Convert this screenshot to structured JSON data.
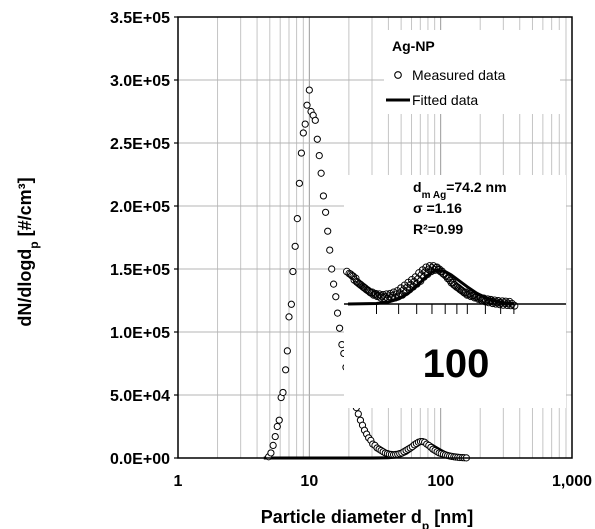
{
  "chart_data": {
    "type": "scatter",
    "xlabel_main": "Particle diameter d",
    "xlabel_sub": "p",
    "xlabel_unit": " [nm]",
    "ylabel_main": "dN/dlogd",
    "ylabel_sub": "p",
    "ylabel_unit": " [#/cm³]",
    "x_scale": "log",
    "xlim": [
      1,
      1000
    ],
    "ylim": [
      0,
      350000
    ],
    "x_ticks": [
      1,
      10,
      100,
      1000
    ],
    "x_tick_labels": [
      "1",
      "10",
      "100",
      "1,000"
    ],
    "y_ticks": [
      0,
      50000,
      100000,
      150000,
      200000,
      250000,
      300000,
      350000
    ],
    "y_tick_labels": [
      "0.0E+00",
      "5.0E+04",
      "1.0E+05",
      "1.5E+05",
      "2.0E+05",
      "2.5E+05",
      "3.0E+05",
      "3.5E+05"
    ],
    "grid": true,
    "legend": {
      "position": "top-right",
      "title": "Ag-NP",
      "entries": [
        "Measured data",
        "Fitted data"
      ]
    },
    "series": [
      {
        "name": "Measured data",
        "marker": "open-circle",
        "x": [
          4.9,
          5.1,
          5.3,
          5.5,
          5.7,
          5.9,
          6.1,
          6.3,
          6.6,
          6.8,
          7.0,
          7.3,
          7.5,
          7.8,
          8.1,
          8.4,
          8.7,
          9.0,
          9.3,
          9.6,
          10.0,
          10.3,
          10.7,
          11.1,
          11.5,
          11.9,
          12.3,
          12.8,
          13.3,
          13.8,
          14.3,
          14.8,
          15.3,
          15.9,
          16.4,
          17.0,
          17.7,
          18.3,
          19.0,
          19.7,
          20.4,
          21.2,
          22.0,
          22.8,
          23.6,
          24.5,
          25.4,
          26.3,
          27.3,
          28.3,
          29.4,
          30.4,
          31.6,
          32.8,
          34.0,
          35.2,
          36.5,
          37.9,
          39.3,
          40.7,
          42.2,
          43.8,
          45.4,
          47.1,
          48.8,
          50.6,
          52.5,
          54.5,
          56.5,
          58.6,
          60.8,
          63.0,
          65.3,
          67.7,
          70.2,
          72.8,
          75.5,
          78.3,
          81.2,
          84.2,
          87.3,
          90.6,
          94.0,
          97.4,
          101,
          105,
          109,
          113,
          117,
          121,
          126,
          130,
          135,
          140,
          146,
          151,
          157
        ],
        "y": [
          1000,
          4000,
          10000,
          17000,
          25000,
          30000,
          48000,
          52000,
          70000,
          85000,
          112000,
          122000,
          148000,
          168000,
          190000,
          218000,
          242000,
          258000,
          265000,
          280000,
          292000,
          275000,
          272000,
          268000,
          253000,
          240000,
          226000,
          208000,
          195000,
          180000,
          165000,
          150000,
          138000,
          128000,
          115000,
          103000,
          90000,
          83000,
          72000,
          65000,
          60000,
          52000,
          45000,
          40000,
          35000,
          30000,
          26000,
          22000,
          19000,
          16000,
          14000,
          11000,
          10000,
          8000,
          7000,
          6000,
          5000,
          4000,
          3500,
          3000,
          2800,
          2600,
          2800,
          3000,
          3500,
          4000,
          5000,
          6000,
          7000,
          8000,
          9000,
          10500,
          11500,
          12500,
          13000,
          13000,
          12500,
          11000,
          10000,
          8500,
          7000,
          6000,
          5000,
          4000,
          3500,
          3000,
          2500,
          2000,
          1600,
          1300,
          1000,
          800,
          600,
          400,
          300,
          200,
          100
        ]
      },
      {
        "name": "Fitted data",
        "line": "thick-black",
        "x": [
          4.5,
          10,
          20,
          30,
          40,
          45,
          50,
          55,
          60,
          65,
          70,
          74.2,
          80,
          85,
          90,
          100,
          110,
          120,
          130,
          145,
          160
        ],
        "y": [
          0,
          0,
          0,
          0,
          200,
          700,
          1800,
          3800,
          6500,
          9200,
          11500,
          12200,
          11700,
          10500,
          9000,
          6200,
          3900,
          2300,
          1200,
          400,
          0
        ]
      }
    ],
    "annotations": {
      "stat_dm_main": "d",
      "stat_dm_sub": "m Ag",
      "stat_dm_value": "=74.2 nm",
      "stat_sigma": "σ =1.16",
      "stat_r2": "R²=0.99",
      "inset_label": "100"
    }
  }
}
